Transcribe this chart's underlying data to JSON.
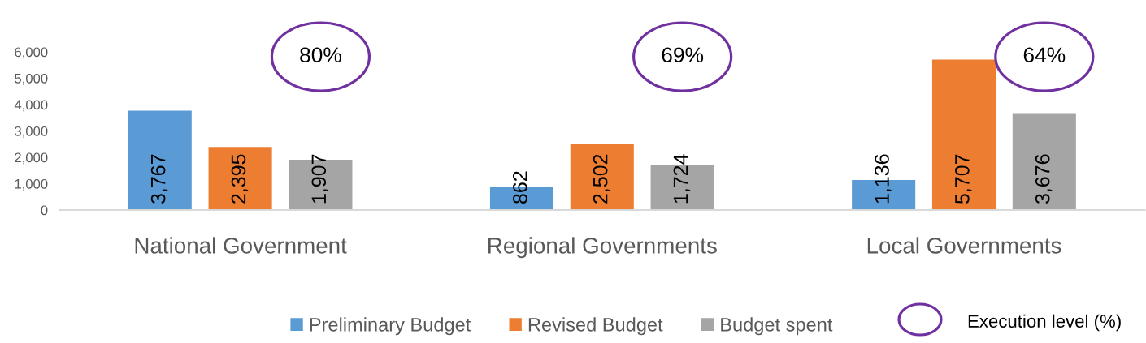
{
  "chart_data": {
    "type": "bar",
    "categories": [
      "National Government",
      "Regional Governments",
      "Local Governments"
    ],
    "series": [
      {
        "name": "Preliminary Budget",
        "color": "#5b9bd5",
        "values": [
          3767,
          862,
          1136
        ],
        "value_labels": [
          "3,767",
          "862",
          "1,136"
        ]
      },
      {
        "name": "Revised Budget",
        "color": "#ed7d31",
        "values": [
          2395,
          2502,
          5707
        ],
        "value_labels": [
          "2,395",
          "2,502",
          "5,707"
        ]
      },
      {
        "name": "Budget spent",
        "color": "#a5a5a5",
        "values": [
          1907,
          1724,
          3676
        ],
        "value_labels": [
          "1,907",
          "1,724",
          "3,676"
        ]
      }
    ],
    "ylim": [
      0,
      6000
    ],
    "yticks": [
      {
        "value": 0,
        "label": "0"
      },
      {
        "value": 1000,
        "label": "1,000"
      },
      {
        "value": 2000,
        "label": "2,000"
      },
      {
        "value": 3000,
        "label": "3,000"
      },
      {
        "value": 4000,
        "label": "4,000"
      },
      {
        "value": 5000,
        "label": "5,000"
      },
      {
        "value": 6000,
        "label": "6,000"
      }
    ],
    "annotations": [
      "80%",
      "69%",
      "64%",
      "Execution level (%)"
    ],
    "legend": "bottom"
  }
}
